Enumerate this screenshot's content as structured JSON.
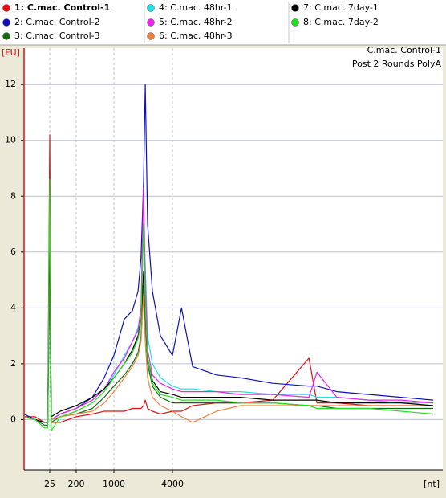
{
  "chart_data": {
    "type": "line",
    "annotations": [
      "C.mac. Control-1",
      "Post 2 Rounds PolyA"
    ],
    "y_label": "[FU]",
    "x_label": "[nt]",
    "x": [
      5,
      10,
      18,
      22,
      25,
      28,
      57,
      200,
      400,
      660,
      1000,
      1280,
      1550,
      1770,
      1900,
      2020,
      2100,
      2220,
      2490,
      3010,
      4000,
      4230,
      4530,
      5250,
      6090,
      7430,
      9290,
      9760,
      11040,
      13460,
      16410,
      20000
    ],
    "xlim": [
      5,
      20000
    ],
    "xticks": [
      25,
      200,
      1000,
      4000
    ],
    "ylim": [
      -1.8,
      13.3
    ],
    "yticks": [
      0,
      2,
      4,
      6,
      8,
      10,
      12
    ],
    "grid": true,
    "series": [
      {
        "name": "1: C.mac. Control-1",
        "color": "#e01010",
        "values": [
          0.1,
          0.1,
          -0.1,
          -0.1,
          10.2,
          -0.1,
          -0.1,
          0.1,
          0.2,
          0.3,
          0.3,
          0.3,
          0.4,
          0.4,
          0.4,
          0.5,
          0.7,
          0.4,
          0.3,
          0.2,
          0.3,
          0.3,
          0.5,
          0.6,
          0.6,
          0.7,
          2.2,
          0.6,
          0.6,
          0.5,
          0.5,
          0.5
        ]
      },
      {
        "name": "2: C.mac. Control-2",
        "color": "#1010c0",
        "values": [
          0.2,
          0.0,
          -0.1,
          -0.1,
          5.3,
          0.0,
          0.2,
          0.4,
          0.8,
          1.5,
          2.3,
          3.6,
          3.9,
          4.6,
          5.8,
          8.5,
          12.0,
          7.0,
          4.6,
          3.0,
          2.3,
          4.0,
          1.9,
          1.6,
          1.5,
          1.3,
          1.2,
          1.2,
          1.0,
          0.9,
          0.8,
          0.7
        ]
      },
      {
        "name": "3: C.mac. Control-3",
        "color": "#107010",
        "values": [
          0.1,
          0.0,
          -0.2,
          -0.2,
          7.8,
          -0.1,
          0.1,
          0.2,
          0.4,
          0.8,
          1.2,
          1.6,
          2.0,
          2.4,
          3.0,
          4.8,
          3.5,
          2.0,
          1.2,
          0.8,
          0.6,
          0.6,
          0.6,
          0.6,
          0.6,
          0.6,
          0.5,
          0.5,
          0.4,
          0.4,
          0.4,
          0.4
        ]
      },
      {
        "name": "4: C.mac. 48hr-1",
        "color": "#20e0e8",
        "values": [
          0.1,
          0.0,
          -0.1,
          -0.1,
          6.0,
          0.0,
          0.2,
          0.4,
          0.7,
          1.1,
          1.6,
          2.3,
          2.8,
          3.3,
          3.9,
          6.9,
          5.5,
          3.0,
          2.0,
          1.5,
          1.2,
          1.1,
          1.1,
          1.0,
          1.0,
          0.9,
          0.9,
          0.8,
          0.8,
          0.7,
          0.6,
          0.6
        ]
      },
      {
        "name": "5: C.mac. 48hr-2",
        "color": "#f020f0",
        "values": [
          0.1,
          0.0,
          -0.1,
          -0.1,
          5.5,
          0.0,
          0.2,
          0.4,
          0.7,
          1.1,
          1.7,
          2.2,
          2.8,
          3.2,
          4.0,
          8.3,
          5.0,
          2.5,
          1.6,
          1.3,
          1.1,
          1.0,
          1.0,
          1.0,
          0.9,
          0.9,
          0.8,
          1.7,
          0.8,
          0.7,
          0.7,
          0.6
        ]
      },
      {
        "name": "6: C.mac. 48hr-3",
        "color": "#f08040",
        "values": [
          0.1,
          0.0,
          -0.1,
          -0.1,
          6.5,
          0.0,
          0.1,
          0.2,
          0.3,
          0.6,
          1.0,
          1.5,
          1.9,
          2.3,
          2.8,
          4.5,
          2.8,
          1.5,
          0.8,
          0.5,
          0.3,
          0.1,
          -0.1,
          0.3,
          0.5,
          0.5,
          0.5,
          0.5,
          0.5,
          0.5,
          0.5,
          0.5
        ]
      },
      {
        "name": "7: C.mac. 7day-1",
        "color": "#000000",
        "values": [
          0.1,
          0.0,
          -0.1,
          -0.1,
          7.0,
          0.1,
          0.3,
          0.5,
          0.8,
          1.1,
          1.5,
          2.0,
          2.5,
          3.0,
          3.6,
          5.3,
          3.8,
          2.2,
          1.4,
          1.0,
          0.9,
          0.8,
          0.8,
          0.8,
          0.8,
          0.7,
          0.7,
          0.7,
          0.6,
          0.6,
          0.6,
          0.5
        ]
      },
      {
        "name": "8: C.mac. 7day-2",
        "color": "#20e020",
        "values": [
          0.1,
          0.0,
          -0.3,
          -0.3,
          8.6,
          -0.4,
          0.1,
          0.3,
          0.6,
          1.0,
          1.5,
          2.0,
          2.4,
          2.9,
          3.5,
          7.0,
          4.0,
          2.2,
          1.3,
          0.9,
          0.8,
          0.7,
          0.7,
          0.7,
          0.6,
          0.6,
          0.5,
          0.4,
          0.4,
          0.4,
          0.3,
          0.2
        ]
      }
    ]
  }
}
